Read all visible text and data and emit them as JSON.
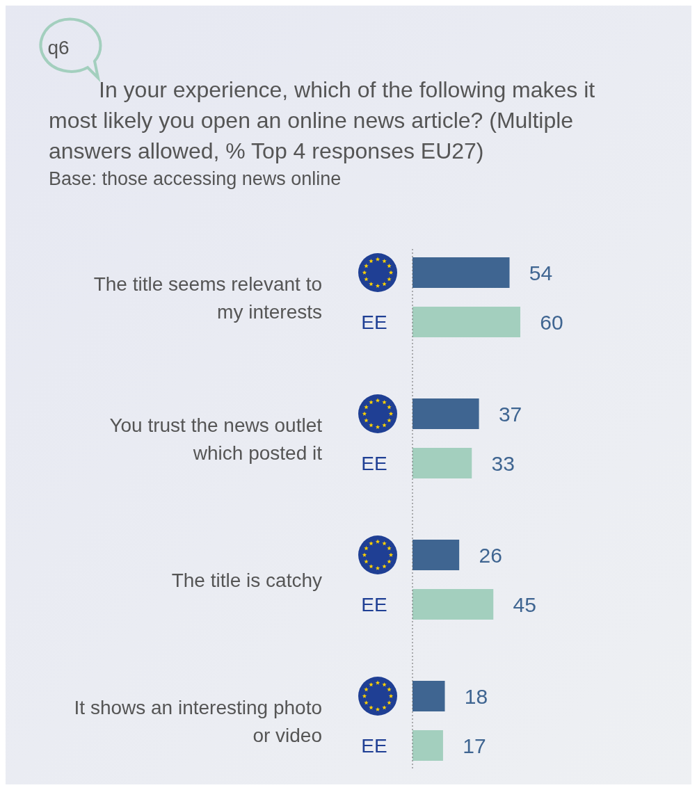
{
  "chart_data": {
    "type": "bar",
    "orientation": "horizontal",
    "title": "In your experience, which of the following makes it most likely you open an online news article? (Multiple answers allowed, % Top 4 responses EU27)",
    "subtitle": "Base: those accessing news online",
    "annotations": [
      "q6"
    ],
    "categories": [
      "The title seems relevant to my interests",
      "You trust the news outlet which posted it",
      "The title is catchy",
      "It shows an interesting photo or video"
    ],
    "series": [
      {
        "color": "#3f6591",
        "values": [
          54,
          37,
          26,
          18
        ]
      },
      {
        "name": "EE",
        "color": "#a3cfbe",
        "values": [
          60,
          33,
          45,
          17
        ]
      }
    ],
    "data_labels": true
  }
}
